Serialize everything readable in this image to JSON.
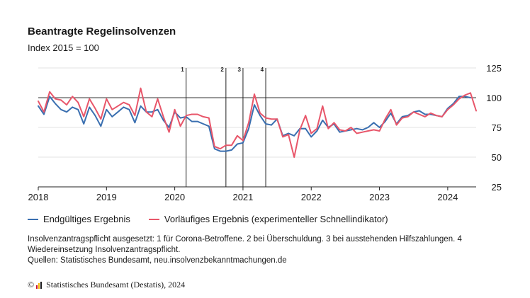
{
  "header": {
    "title": "Beantragte Regelinsolvenzen",
    "subtitle": "Index 2015 = 100"
  },
  "legend": [
    {
      "label": "Endgültiges Ergebnis",
      "color": "#3a6fb0"
    },
    {
      "label": "Vorläufiges Ergebnis (experimenteller Schnellindikator)",
      "color": "#e8566a"
    }
  ],
  "notes": {
    "line1": "Insolvenzantragspflicht ausgesetzt: 1 für Corona-Betroffene. 2 bei Überschuldung. 3 bei ausstehenden Hilfszahlungen. 4 Wiedereinsetzung Insolvenzantragspflicht.",
    "line2": "Quellen: Statistisches Bundesamt, neu.insolvenzbekanntmachungen.de"
  },
  "footer": {
    "copyright_symbol": "©",
    "text": "Statistisches Bundesamt (Destatis), 2024"
  },
  "chart_data": {
    "type": "line",
    "title": "Beantragte Regelinsolvenzen",
    "subtitle": "Index 2015 = 100",
    "x_start": "2018-01",
    "x_end": "2024-06",
    "x_ticks": [
      "2018",
      "2019",
      "2020",
      "2021",
      "2022",
      "2023",
      "2024"
    ],
    "y_ticks": [
      25,
      50,
      75,
      100,
      125
    ],
    "ylim": [
      25,
      125
    ],
    "reference_line": 100,
    "y_axis_position": "right",
    "grid": "horizontal",
    "annotations": [
      {
        "label": "1",
        "x": "2020-03"
      },
      {
        "label": "2",
        "x": "2020-10"
      },
      {
        "label": "3",
        "x": "2021-01"
      },
      {
        "label": "4",
        "x": "2021-05"
      }
    ],
    "series": [
      {
        "name": "Endgültiges Ergebnis",
        "color": "#3a6fb0",
        "start": "2018-01",
        "values": [
          93,
          86,
          101,
          95,
          90,
          88,
          92,
          90,
          78,
          92,
          85,
          76,
          90,
          84,
          88,
          92,
          90,
          79,
          93,
          88,
          88,
          90,
          81,
          75,
          88,
          83,
          84,
          80,
          80,
          78,
          76,
          57,
          55,
          55,
          56,
          61,
          62,
          74,
          94,
          85,
          78,
          77,
          82,
          68,
          70,
          68,
          74,
          74,
          67,
          72,
          81,
          75,
          78,
          71,
          72,
          73,
          74,
          73,
          75,
          79,
          75,
          80,
          87,
          78,
          84,
          85,
          88,
          89,
          86,
          86,
          85,
          84,
          91,
          95,
          101,
          101,
          100
        ]
      },
      {
        "name": "Vorläufiges Ergebnis (experimenteller Schnellindikator)",
        "color": "#e8566a",
        "start": "2018-01",
        "values": [
          97,
          88,
          105,
          99,
          98,
          94,
          101,
          96,
          84,
          99,
          91,
          82,
          99,
          90,
          93,
          96,
          94,
          85,
          108,
          88,
          84,
          99,
          84,
          71,
          90,
          76,
          85,
          86,
          86,
          84,
          83,
          59,
          57,
          60,
          60,
          68,
          64,
          79,
          103,
          87,
          83,
          82,
          82,
          67,
          69,
          50,
          73,
          85,
          70,
          74,
          93,
          74,
          79,
          73,
          72,
          75,
          70,
          71,
          72,
          73,
          72,
          82,
          90,
          77,
          83,
          84,
          88,
          86,
          84,
          87,
          85,
          84,
          90,
          94,
          99,
          102,
          104,
          89
        ]
      }
    ]
  }
}
